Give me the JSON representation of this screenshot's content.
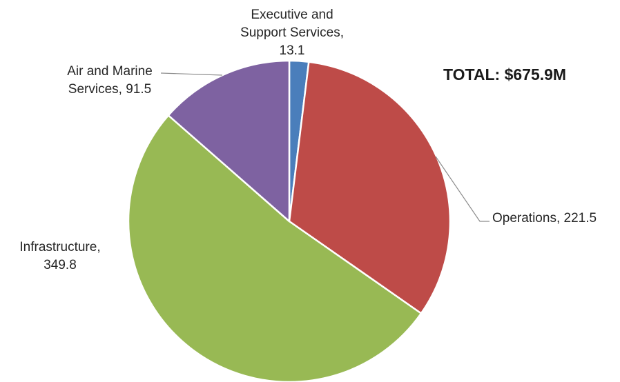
{
  "chart_data": {
    "type": "pie",
    "annotation": "TOTAL: $675.9M",
    "slices": [
      {
        "label": [
          "Executive and",
          "Support Services,",
          "13.1"
        ],
        "name": "Executive and Support Services",
        "value": 13.1,
        "color": "#4A7EBB"
      },
      {
        "label": [
          "Operations,  221.5"
        ],
        "name": "Operations",
        "value": 221.5,
        "color": "#BE4B48"
      },
      {
        "label": [
          "Infrastructure,",
          "349.8"
        ],
        "name": "Infrastructure",
        "value": 349.8,
        "color": "#98B954"
      },
      {
        "label": [
          "Air and Marine",
          "Services,  91.5"
        ],
        "name": "Air and Marine Services",
        "value": 91.5,
        "color": "#7E62A1"
      }
    ]
  }
}
